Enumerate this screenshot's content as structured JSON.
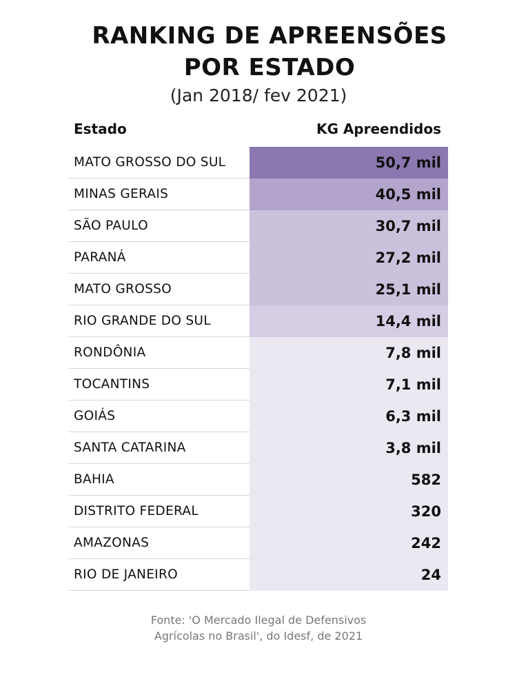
{
  "chart_data": {
    "type": "table",
    "title_line1": "RANKING DE APREENSÕES",
    "title_line2": "POR ESTADO",
    "subtitle": "(Jan 2018/ fev 2021)",
    "columns": [
      "Estado",
      "KG Apreendidos"
    ],
    "rows": [
      {
        "estado": "MATO GROSSO DO SUL",
        "kg": "50,7 mil",
        "value": 50700,
        "color": "#8b78b0"
      },
      {
        "estado": "MINAS GERAIS",
        "kg": "40,5 mil",
        "value": 40500,
        "color": "#b3a4cc"
      },
      {
        "estado": "SÃO PAULO",
        "kg": "30,7 mil",
        "value": 30700,
        "color": "#cbc1dc"
      },
      {
        "estado": "PARANÁ",
        "kg": "27,2 mil",
        "value": 27200,
        "color": "#cbc1dc"
      },
      {
        "estado": "MATO GROSSO",
        "kg": "25,1 mil",
        "value": 25100,
        "color": "#cbc1dc"
      },
      {
        "estado": "RIO GRANDE DO SUL",
        "kg": "14,4 mil",
        "value": 14400,
        "color": "#d5cde4"
      },
      {
        "estado": "RONDÔNIA",
        "kg": "7,8 mil",
        "value": 7800,
        "color": "#ece8f2"
      },
      {
        "estado": "TOCANTINS",
        "kg": "7,1 mil",
        "value": 7100,
        "color": "#ece8f2"
      },
      {
        "estado": "GOIÁS",
        "kg": "6,3 mil",
        "value": 6300,
        "color": "#ece8f2"
      },
      {
        "estado": "SANTA CATARINA",
        "kg": "3,8 mil",
        "value": 3800,
        "color": "#ece8f2"
      },
      {
        "estado": "BAHIA",
        "kg": "582",
        "value": 582,
        "color": "#ece8f2"
      },
      {
        "estado": "DISTRITO FEDERAL",
        "kg": "320",
        "value": 320,
        "color": "#ece8f2"
      },
      {
        "estado": "AMAZONAS",
        "kg": "242",
        "value": 242,
        "color": "#ece8f2"
      },
      {
        "estado": "RIO DE JANEIRO",
        "kg": "24",
        "value": 24,
        "color": "#ece8f2"
      }
    ],
    "source_line1": "Fonte: 'O Mercado Ilegal de Defensivos",
    "source_line2": "Agrícolas no Brasil', do Idesf, de 2021"
  }
}
